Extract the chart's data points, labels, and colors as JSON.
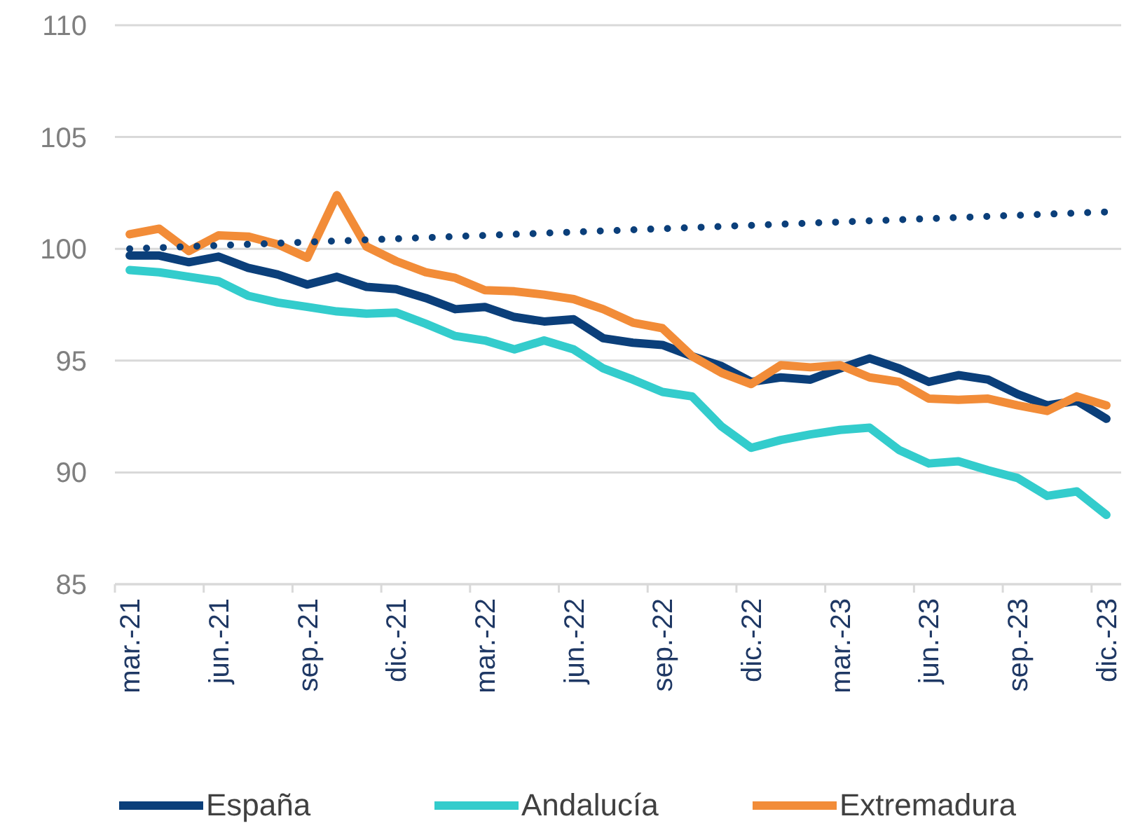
{
  "chart_data": {
    "type": "line",
    "categories": [
      "mar.-21",
      null,
      null,
      "jun.-21",
      null,
      null,
      "sep.-21",
      null,
      null,
      "dic.-21",
      null,
      null,
      "mar.-22",
      null,
      null,
      "jun.-22",
      null,
      null,
      "sep.-22",
      null,
      null,
      "dic.-22",
      null,
      null,
      "mar.-23",
      null,
      null,
      "jun.-23",
      null,
      null,
      "sep.-23",
      null,
      null,
      "dic.-23"
    ],
    "ylim": [
      85,
      110
    ],
    "yticks": [
      85,
      90,
      95,
      100,
      105,
      110
    ],
    "grid": "y",
    "legend": "bottom",
    "marker": "none",
    "series": [
      {
        "name": "España",
        "color": "#0b3f7a",
        "values": [
          99.7,
          99.7,
          99.4,
          99.65,
          99.15,
          98.85,
          98.4,
          98.75,
          98.3,
          98.2,
          97.8,
          97.3,
          97.4,
          96.95,
          96.75,
          96.85,
          96.0,
          95.8,
          95.7,
          95.2,
          94.75,
          94.05,
          94.25,
          94.15,
          94.65,
          95.1,
          94.65,
          94.05,
          94.35,
          94.15,
          93.5,
          93.0,
          93.2,
          92.4
        ]
      },
      {
        "name": "Andalucía",
        "color": "#33cccc",
        "values": [
          99.05,
          98.95,
          98.75,
          98.55,
          97.9,
          97.6,
          97.4,
          97.2,
          97.1,
          97.15,
          96.65,
          96.1,
          95.9,
          95.5,
          95.9,
          95.5,
          94.65,
          94.15,
          93.6,
          93.4,
          92.05,
          91.1,
          91.45,
          91.7,
          91.9,
          92.0,
          91.0,
          90.4,
          90.5,
          90.1,
          89.75,
          88.95,
          89.15,
          88.1
        ]
      },
      {
        "name": "Extremadura",
        "color": "#f28c38",
        "values": [
          100.65,
          100.9,
          99.9,
          100.6,
          100.55,
          100.2,
          99.6,
          102.4,
          100.1,
          99.45,
          98.95,
          98.7,
          98.15,
          98.1,
          97.95,
          97.75,
          97.3,
          96.7,
          96.45,
          95.2,
          94.45,
          93.95,
          94.8,
          94.7,
          94.8,
          94.25,
          94.05,
          93.3,
          93.25,
          93.3,
          93.0,
          92.75,
          93.4,
          93.0
        ]
      },
      {
        "color": "#0b3f7a",
        "line_style": "dotted",
        "values": [
          100.0,
          100.05,
          100.1,
          100.15,
          100.2,
          100.25,
          100.3,
          100.35,
          100.4,
          100.45,
          100.5,
          100.55,
          100.6,
          100.65,
          100.7,
          100.75,
          100.8,
          100.85,
          100.9,
          100.95,
          101.0,
          101.05,
          101.1,
          101.15,
          101.2,
          101.25,
          101.3,
          101.35,
          101.4,
          101.45,
          101.5,
          101.55,
          101.6,
          101.65
        ]
      }
    ]
  }
}
